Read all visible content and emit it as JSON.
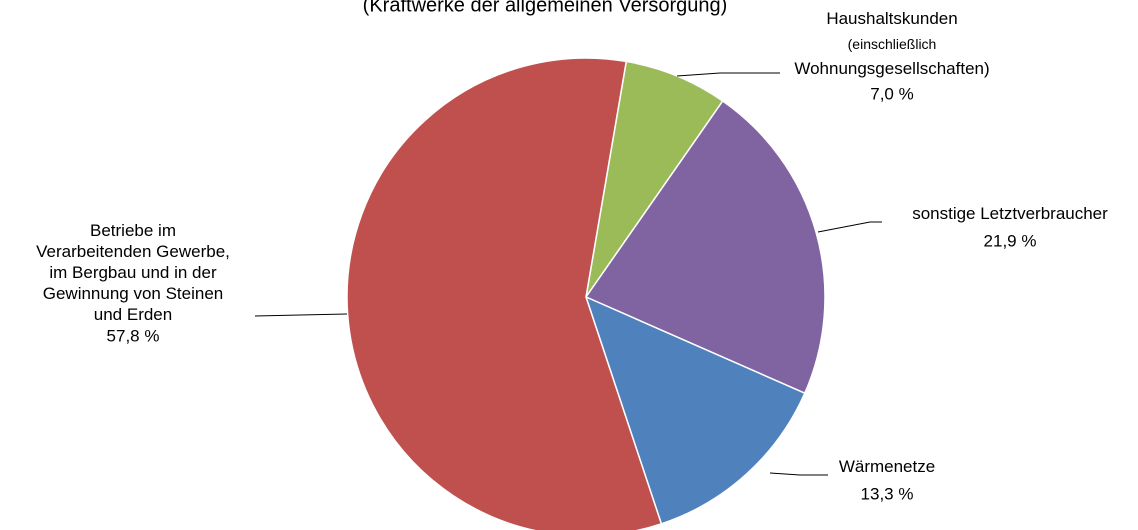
{
  "chart_data": {
    "type": "pie",
    "subtitle": "(Kraftwerke der allgemeinen Versorgung)",
    "categories": [
      "Haushaltskunden\n(einschließlich\nWohnungsgesellschaften)",
      "sonstige Letztverbraucher",
      "Wärmenetze",
      "Betriebe im\nVerarbeitenden Gewerbe,\nim Bergbau und in der\nGewinnung  von Steinen\nund Erden"
    ],
    "values": [
      7.0,
      21.9,
      13.3,
      57.8
    ],
    "value_labels": [
      "7,0 %",
      "21,9 %",
      "13,3 %",
      "57,8 %"
    ],
    "colors": [
      "#9bbb59",
      "#8064a2",
      "#4f81bd",
      "#c0504d"
    ]
  }
}
